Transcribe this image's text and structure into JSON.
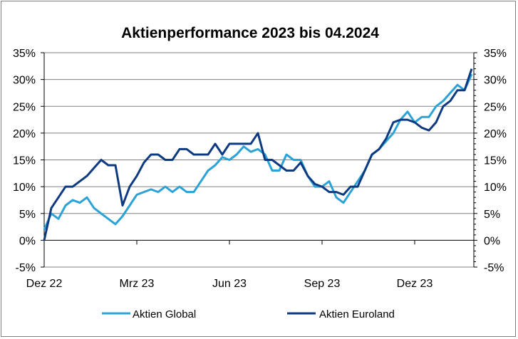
{
  "chart_data": {
    "type": "line",
    "title": "Aktienperformance 2023 bis 04.2024",
    "xlabel": "",
    "ylabel": "",
    "ylim": [
      -5,
      35
    ],
    "yticks": [
      "-5%",
      "0%",
      "5%",
      "10%",
      "15%",
      "20%",
      "25%",
      "30%",
      "35%"
    ],
    "ytick_values": [
      -5,
      0,
      5,
      10,
      15,
      20,
      25,
      30,
      35
    ],
    "xticks": [
      {
        "label": "Dez 22",
        "date": "2022-12-30"
      },
      {
        "label": "Mrz 23",
        "date": "2023-03-31"
      },
      {
        "label": "Jun 23",
        "date": "2023-06-30"
      },
      {
        "label": "Sep 23",
        "date": "2023-09-29"
      },
      {
        "label": "Dez 23",
        "date": "2023-12-29"
      }
    ],
    "grid": true,
    "legend": "bottom",
    "x": [
      "2022-12-30",
      "2023-01-06",
      "2023-01-13",
      "2023-01-20",
      "2023-01-27",
      "2023-02-03",
      "2023-02-10",
      "2023-02-17",
      "2023-02-24",
      "2023-03-03",
      "2023-03-10",
      "2023-03-17",
      "2023-03-24",
      "2023-03-31",
      "2023-04-07",
      "2023-04-14",
      "2023-04-21",
      "2023-04-28",
      "2023-05-05",
      "2023-05-12",
      "2023-05-19",
      "2023-05-26",
      "2023-06-02",
      "2023-06-09",
      "2023-06-16",
      "2023-06-23",
      "2023-06-30",
      "2023-07-07",
      "2023-07-14",
      "2023-07-21",
      "2023-07-28",
      "2023-08-04",
      "2023-08-11",
      "2023-08-18",
      "2023-08-25",
      "2023-09-01",
      "2023-09-08",
      "2023-09-15",
      "2023-09-22",
      "2023-09-29",
      "2023-10-06",
      "2023-10-13",
      "2023-10-20",
      "2023-10-27",
      "2023-11-03",
      "2023-11-10",
      "2023-11-17",
      "2023-11-24",
      "2023-12-01",
      "2023-12-08",
      "2023-12-15",
      "2023-12-22",
      "2023-12-29",
      "2024-01-05",
      "2024-01-12",
      "2024-01-19",
      "2024-01-26",
      "2024-02-02",
      "2024-02-09",
      "2024-02-16",
      "2024-02-23"
    ],
    "series": [
      {
        "name": "Aktien Global",
        "color": "#2ba3d6",
        "values": [
          2,
          5,
          4,
          6.5,
          7.5,
          7,
          8,
          6,
          5,
          4,
          3,
          4.5,
          6.5,
          8.5,
          9,
          9.5,
          9,
          10,
          9,
          10,
          9,
          9,
          11,
          13,
          14,
          15.5,
          15,
          16,
          17.5,
          16.5,
          17,
          16,
          13,
          13,
          16,
          15,
          15,
          12,
          10,
          10,
          11,
          8,
          7,
          9,
          11,
          13,
          16,
          17,
          18.5,
          20,
          22.5,
          24,
          22,
          23,
          23,
          25,
          26,
          27.5,
          29,
          28,
          31
        ]
      },
      {
        "name": "Aktien Euroland",
        "color": "#0d3a80",
        "values": [
          0,
          6,
          8,
          10,
          10,
          11,
          12,
          13.5,
          15,
          14,
          14,
          6.5,
          10,
          12,
          14.5,
          16,
          16,
          15,
          15,
          17,
          17,
          16,
          16,
          16,
          18,
          16,
          18,
          18,
          18,
          18,
          20,
          15,
          15,
          14,
          13,
          13,
          14.5,
          12,
          10.5,
          10,
          9,
          9,
          8.5,
          10,
          10,
          13,
          16,
          17,
          19,
          22,
          22.5,
          22.5,
          22,
          21,
          20.5,
          22,
          25,
          26,
          28,
          28,
          32
        ]
      }
    ]
  }
}
